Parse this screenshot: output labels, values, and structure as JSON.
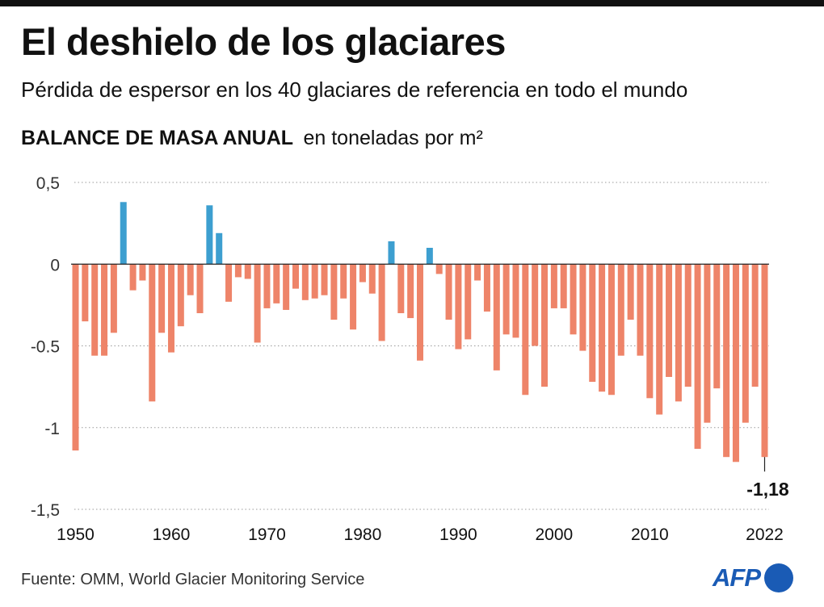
{
  "header": {
    "title": "El deshielo de los glaciares",
    "subtitle": "Pérdida de espersor en los 40 glaciares de referencia en todo el mundo"
  },
  "chart_header": {
    "metric": "BALANCE DE MASA ANUAL",
    "unit": "en toneladas por m²"
  },
  "footer": {
    "source": "Fuente: OMM, World Glacier Monitoring Service",
    "logo": "AFP"
  },
  "chart_data": {
    "type": "bar",
    "title": "BALANCE DE MASA ANUAL",
    "ylabel": "en toneladas por m²",
    "xlabel": "",
    "ylim": [
      -1.5,
      0.5
    ],
    "y_ticks": [
      0.5,
      0,
      -0.5,
      -1,
      -1.5
    ],
    "y_tick_labels": [
      "0,5",
      "0",
      "-0.5",
      "-1",
      "-1,5"
    ],
    "x_ticks": [
      1950,
      1960,
      1970,
      1980,
      1990,
      2000,
      2010,
      2022
    ],
    "x_tick_labels": [
      "1950",
      "1960",
      "1970",
      "1980",
      "1990",
      "2000",
      "2010",
      "2022"
    ],
    "grid": "horizontal dotted",
    "colors": {
      "positive": "#3d9fd0",
      "negative": "#ee8469",
      "text": "#111111",
      "grid": "#9a9a9a"
    },
    "annotation": {
      "year": 2022,
      "label": "-1,18"
    },
    "years": [
      1950,
      1951,
      1952,
      1953,
      1954,
      1955,
      1956,
      1957,
      1958,
      1959,
      1960,
      1961,
      1962,
      1963,
      1964,
      1965,
      1966,
      1967,
      1968,
      1969,
      1970,
      1971,
      1972,
      1973,
      1974,
      1975,
      1976,
      1977,
      1978,
      1979,
      1980,
      1981,
      1982,
      1983,
      1984,
      1985,
      1986,
      1987,
      1988,
      1989,
      1990,
      1991,
      1992,
      1993,
      1994,
      1995,
      1996,
      1997,
      1998,
      1999,
      2000,
      2001,
      2002,
      2003,
      2004,
      2005,
      2006,
      2007,
      2008,
      2009,
      2010,
      2011,
      2012,
      2013,
      2014,
      2015,
      2016,
      2017,
      2018,
      2019,
      2020,
      2021,
      2022
    ],
    "values": [
      -1.14,
      -0.35,
      -0.56,
      -0.56,
      -0.42,
      0.38,
      -0.16,
      -0.1,
      -0.84,
      -0.42,
      -0.54,
      -0.38,
      -0.19,
      -0.3,
      0.36,
      0.19,
      -0.23,
      -0.08,
      -0.09,
      -0.48,
      -0.27,
      -0.24,
      -0.28,
      -0.15,
      -0.22,
      -0.21,
      -0.19,
      -0.34,
      -0.21,
      -0.4,
      -0.11,
      -0.18,
      -0.47,
      0.14,
      -0.3,
      -0.33,
      -0.59,
      0.1,
      -0.06,
      -0.34,
      -0.52,
      -0.46,
      -0.1,
      -0.29,
      -0.65,
      -0.43,
      -0.45,
      -0.8,
      -0.5,
      -0.75,
      -0.27,
      -0.27,
      -0.43,
      -0.53,
      -0.72,
      -0.78,
      -0.8,
      -0.56,
      -0.34,
      -0.56,
      -0.82,
      -0.92,
      -0.69,
      -0.84,
      -0.75,
      -1.13,
      -0.97,
      -0.76,
      -1.18,
      -1.21,
      -0.97,
      -0.75,
      -1.18
    ]
  }
}
